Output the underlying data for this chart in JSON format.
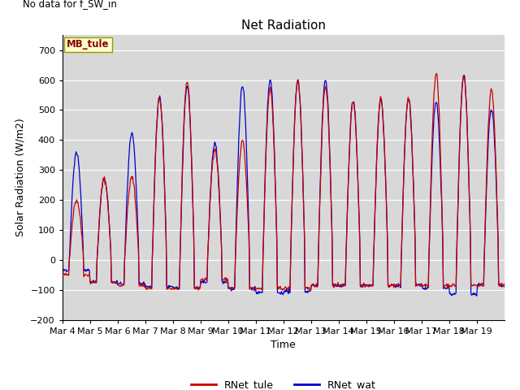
{
  "title": "Net Radiation",
  "xlabel": "Time",
  "ylabel": "Solar Radiation (W/m2)",
  "text_no_data": "No data for f_SW_in",
  "station_label": "MB_tule",
  "ylim": [
    -200,
    750
  ],
  "yticks": [
    -200,
    -100,
    0,
    100,
    200,
    300,
    400,
    500,
    600,
    700
  ],
  "line_color_tule": "#cc0000",
  "line_color_wat": "#0000cc",
  "legend_labels": [
    "RNet_tule",
    "RNet_wat"
  ],
  "bg_color": "#d8d8d8",
  "n_days": 16,
  "day_peaks_tule": [
    200,
    270,
    275,
    540,
    595,
    370,
    395,
    570,
    600,
    580,
    530,
    540,
    540,
    620,
    615,
    570
  ],
  "day_peaks_wat": [
    360,
    270,
    420,
    545,
    580,
    390,
    580,
    600,
    600,
    600,
    530,
    535,
    540,
    525,
    615,
    505
  ],
  "night_val_tule": [
    -50,
    -75,
    -85,
    -95,
    -95,
    -65,
    -95,
    -95,
    -95,
    -85,
    -85,
    -85,
    -85,
    -85,
    -85,
    -85
  ],
  "night_val_wat": [
    -35,
    -75,
    -80,
    -90,
    -95,
    -75,
    -95,
    -110,
    -105,
    -85,
    -85,
    -85,
    -85,
    -95,
    -115,
    -85
  ],
  "x_ticklabels": [
    "Mar 4",
    "Mar 5",
    "Mar 6",
    "Mar 7",
    "Mar 8",
    "Mar 9",
    "Mar 10",
    "Mar 11",
    "Mar 12",
    "Mar 13",
    "Mar 14",
    "Mar 15",
    "Mar 16",
    "Mar 17",
    "Mar 18",
    "Mar 19"
  ]
}
